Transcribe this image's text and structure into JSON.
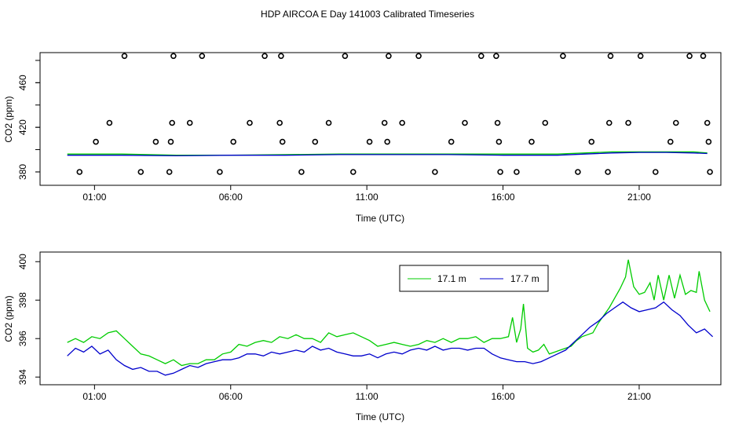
{
  "title": "HDP AIRCOA E  Day 141003  Calibrated Timeseries",
  "chart_data": [
    {
      "type": "scatter",
      "xlabel": "Time (UTC)",
      "ylabel": "CO2 (ppm)",
      "xlim": [
        -1.0,
        24.0
      ],
      "ylim": [
        368,
        487
      ],
      "x_ticks": [
        1,
        6,
        11,
        16,
        21
      ],
      "x_tick_labels": [
        "01:00",
        "06:00",
        "11:00",
        "16:00",
        "21:00"
      ],
      "y_ticks": [
        380,
        420,
        460
      ],
      "y_minor_ticks": [
        380,
        400,
        420,
        440,
        460,
        480
      ],
      "points_x": [
        0.45,
        1.05,
        1.55,
        2.1,
        2.7,
        3.25,
        3.75,
        3.8,
        3.85,
        3.9,
        4.5,
        4.95,
        5.6,
        6.1,
        6.7,
        7.25,
        7.8,
        7.85,
        7.9,
        8.6,
        9.1,
        9.6,
        10.2,
        10.5,
        11.1,
        11.65,
        11.75,
        11.8,
        12.3,
        12.9,
        13.5,
        14.1,
        14.6,
        15.2,
        15.75,
        15.8,
        15.85,
        15.9,
        16.5,
        17.05,
        17.55,
        18.2,
        18.75,
        19.25,
        19.85,
        19.9,
        19.95,
        20.6,
        21.05,
        21.6,
        22.15,
        22.35,
        22.85,
        23.35,
        23.5,
        23.55,
        23.6
      ],
      "points_y": [
        380,
        407,
        424,
        484,
        380,
        407,
        380,
        407,
        424,
        484,
        424,
        484,
        380,
        407,
        424,
        484,
        424,
        484,
        407,
        380,
        407,
        424,
        484,
        380,
        407,
        424,
        407,
        484,
        424,
        484,
        380,
        407,
        424,
        484,
        484,
        424,
        407,
        380,
        380,
        407,
        424,
        484,
        380,
        407,
        380,
        424,
        484,
        424,
        484,
        380,
        407,
        424,
        484,
        484,
        424,
        407,
        380
      ],
      "series": [
        {
          "name": "",
          "color": "#00cc00",
          "x": [
            0,
            2,
            4,
            6,
            8,
            10,
            12,
            14,
            16,
            18,
            19,
            20,
            21,
            22,
            23,
            23.5
          ],
          "y": [
            396,
            396,
            395,
            395,
            395.5,
            396,
            396,
            396,
            396,
            396,
            397,
            398,
            398,
            398,
            398,
            397
          ]
        },
        {
          "name": "",
          "color": "#0000cc",
          "x": [
            0,
            2,
            4,
            6,
            8,
            10,
            12,
            14,
            16,
            18,
            19,
            20,
            21,
            22,
            23,
            23.5
          ],
          "y": [
            395,
            395,
            394.5,
            395,
            395,
            395.5,
            395.5,
            395.5,
            395,
            395,
            396,
            397,
            397.5,
            397.5,
            397,
            396.5
          ]
        }
      ]
    },
    {
      "type": "line",
      "xlabel": "Time (UTC)",
      "ylabel": "CO2 (ppm)",
      "xlim": [
        -1.0,
        24.0
      ],
      "ylim": [
        393.6,
        400.5
      ],
      "x_ticks": [
        1,
        6,
        11,
        16,
        21
      ],
      "x_tick_labels": [
        "01:00",
        "06:00",
        "11:00",
        "16:00",
        "21:00"
      ],
      "y_ticks": [
        394,
        396,
        398,
        400
      ],
      "legend": "top-right",
      "series": [
        {
          "name": "17.1 m",
          "color": "#00cc00",
          "x": [
            0,
            0.3,
            0.6,
            0.9,
            1.2,
            1.5,
            1.8,
            2.1,
            2.4,
            2.7,
            3.0,
            3.3,
            3.6,
            3.9,
            4.2,
            4.5,
            4.8,
            5.1,
            5.4,
            5.7,
            6.0,
            6.3,
            6.6,
            6.9,
            7.2,
            7.5,
            7.8,
            8.1,
            8.4,
            8.7,
            9.0,
            9.3,
            9.6,
            9.9,
            10.2,
            10.5,
            10.8,
            11.1,
            11.4,
            11.7,
            12.0,
            12.3,
            12.6,
            12.9,
            13.2,
            13.5,
            13.8,
            14.1,
            14.4,
            14.7,
            15.0,
            15.3,
            15.6,
            15.9,
            16.2,
            16.35,
            16.5,
            16.65,
            16.75,
            16.9,
            17.1,
            17.3,
            17.5,
            17.7,
            17.9,
            18.1,
            18.3,
            18.5,
            18.7,
            18.9,
            19.1,
            19.3,
            19.5,
            19.7,
            19.9,
            20.1,
            20.3,
            20.5,
            20.6,
            20.8,
            21.0,
            21.2,
            21.4,
            21.55,
            21.7,
            21.9,
            22.1,
            22.3,
            22.5,
            22.7,
            22.9,
            23.1,
            23.2,
            23.4,
            23.6
          ],
          "y": [
            395.8,
            396.0,
            395.8,
            396.1,
            396.0,
            396.3,
            396.4,
            396.0,
            395.6,
            395.2,
            395.1,
            394.9,
            394.7,
            394.9,
            394.6,
            394.7,
            394.7,
            394.9,
            394.9,
            395.2,
            395.3,
            395.7,
            395.6,
            395.8,
            395.9,
            395.8,
            396.1,
            396.0,
            396.2,
            396.0,
            396.0,
            395.8,
            396.3,
            396.1,
            396.2,
            396.3,
            396.1,
            395.9,
            395.6,
            395.7,
            395.8,
            395.7,
            395.6,
            395.7,
            395.9,
            395.8,
            396.0,
            395.8,
            396.0,
            396.0,
            396.1,
            395.8,
            396.0,
            396.0,
            396.1,
            397.1,
            395.8,
            396.5,
            397.8,
            395.5,
            395.3,
            395.4,
            395.7,
            395.2,
            395.3,
            395.4,
            395.5,
            395.6,
            395.9,
            396.1,
            396.2,
            396.3,
            396.8,
            397.2,
            397.6,
            398.1,
            398.6,
            399.2,
            400.1,
            398.7,
            398.3,
            398.4,
            398.9,
            398.0,
            399.3,
            398.0,
            399.3,
            398.1,
            399.3,
            398.3,
            398.5,
            398.4,
            399.5,
            398.0,
            397.4
          ]
        },
        {
          "name": "17.7 m",
          "color": "#0000cc",
          "x": [
            0,
            0.3,
            0.6,
            0.9,
            1.2,
            1.5,
            1.8,
            2.1,
            2.4,
            2.7,
            3.0,
            3.3,
            3.6,
            3.9,
            4.2,
            4.5,
            4.8,
            5.1,
            5.4,
            5.7,
            6.0,
            6.3,
            6.6,
            6.9,
            7.2,
            7.5,
            7.8,
            8.1,
            8.4,
            8.7,
            9.0,
            9.3,
            9.6,
            9.9,
            10.2,
            10.5,
            10.8,
            11.1,
            11.4,
            11.7,
            12.0,
            12.3,
            12.6,
            12.9,
            13.2,
            13.5,
            13.8,
            14.1,
            14.4,
            14.7,
            15.0,
            15.3,
            15.6,
            15.9,
            16.2,
            16.5,
            16.8,
            17.1,
            17.4,
            17.7,
            18.0,
            18.3,
            18.6,
            18.9,
            19.2,
            19.5,
            19.8,
            20.1,
            20.4,
            20.7,
            21.0,
            21.3,
            21.6,
            21.9,
            22.2,
            22.5,
            22.8,
            23.1,
            23.4,
            23.7
          ],
          "y": [
            395.1,
            395.5,
            395.3,
            395.6,
            395.2,
            395.4,
            394.9,
            394.6,
            394.4,
            394.5,
            394.3,
            394.3,
            394.1,
            394.2,
            394.4,
            394.6,
            394.5,
            394.7,
            394.8,
            394.9,
            394.9,
            395.0,
            395.2,
            395.2,
            395.1,
            395.3,
            395.2,
            395.3,
            395.4,
            395.3,
            395.6,
            395.4,
            395.5,
            395.3,
            395.2,
            395.1,
            395.1,
            395.2,
            395.0,
            395.2,
            395.3,
            395.2,
            395.4,
            395.5,
            395.4,
            395.6,
            395.4,
            395.5,
            395.5,
            395.4,
            395.5,
            395.5,
            395.2,
            395.0,
            394.9,
            394.8,
            394.8,
            394.7,
            394.8,
            395.0,
            395.2,
            395.4,
            395.8,
            396.2,
            396.6,
            396.9,
            397.3,
            397.6,
            397.9,
            397.6,
            397.4,
            397.5,
            397.6,
            397.9,
            397.5,
            397.2,
            396.7,
            396.3,
            396.5,
            396.1
          ]
        }
      ]
    }
  ]
}
